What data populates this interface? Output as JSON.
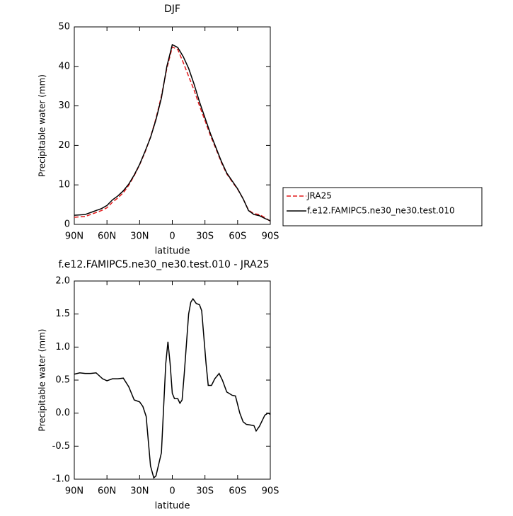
{
  "chart_data": [
    {
      "type": "line",
      "title": "DJF",
      "xlabel": "latitude",
      "ylabel": "Precipitable water (mm)",
      "x": [
        90,
        85,
        80,
        75,
        70,
        65,
        60,
        55,
        50,
        45,
        40,
        35,
        30,
        25,
        20,
        15,
        10,
        5,
        0,
        -5,
        -10,
        -15,
        -20,
        -25,
        -30,
        -35,
        -40,
        -45,
        -50,
        -55,
        -60,
        -65,
        -70,
        -75,
        -80,
        -85,
        -90
      ],
      "series": [
        {
          "name": "JRA25",
          "color": "#e41a1c",
          "linestyle": "dashed",
          "values": [
            1.8,
            1.9,
            2.0,
            2.5,
            3.0,
            3.5,
            4.2,
            5.6,
            6.7,
            8.0,
            9.9,
            12.3,
            15.1,
            18.3,
            22.1,
            26.8,
            32.5,
            39.5,
            44.9,
            44.3,
            41.0,
            37.5,
            34.0,
            30.0,
            26.3,
            22.5,
            19.2,
            15.7,
            12.8,
            10.8,
            8.9,
            6.5,
            3.6,
            2.7,
            2.5,
            1.7,
            0.8
          ]
        },
        {
          "name": "f.e12.FAMIPC5.ne30_ne30.test.010",
          "color": "#000000",
          "linestyle": "solid",
          "values": [
            2.3,
            2.4,
            2.5,
            3.0,
            3.5,
            4.0,
            4.8,
            6.2,
            7.2,
            8.5,
            10.2,
            12.5,
            15.2,
            18.5,
            22.0,
            26.5,
            32.0,
            40.0,
            45.5,
            44.8,
            42.5,
            39.5,
            35.5,
            31.0,
            27.0,
            23.0,
            19.5,
            16.0,
            13.0,
            11.0,
            9.0,
            6.5,
            3.5,
            2.5,
            2.2,
            1.5,
            0.9
          ]
        }
      ],
      "xlim": [
        90,
        -90
      ],
      "xticks": [
        {
          "value": 90,
          "label": "90N"
        },
        {
          "value": 60,
          "label": "60N"
        },
        {
          "value": 30,
          "label": "30N"
        },
        0,
        {
          "value": -30,
          "label": "30S"
        },
        {
          "value": -60,
          "label": "60S"
        },
        {
          "value": -90,
          "label": "90S"
        }
      ],
      "ylim": [
        0,
        50
      ],
      "yticks": [
        0,
        10,
        20,
        30,
        40,
        50
      ],
      "legend": "outside-right",
      "grid": false
    },
    {
      "type": "line",
      "title": "f.e12.FAMIPC5.ne30_ne30.test.010 - JRA25",
      "xlabel": "latitude",
      "ylabel": "Precipitable water (mm)",
      "x": [
        90,
        85,
        80,
        75,
        70,
        64,
        60,
        55,
        50,
        45,
        40,
        35,
        30,
        27,
        24,
        20,
        17,
        15,
        10,
        6,
        4,
        2,
        0,
        -2,
        -5,
        -7,
        -9,
        -11,
        -15,
        -17,
        -19,
        -22,
        -25,
        -27,
        -31,
        -33,
        -36,
        -39,
        -43,
        -46,
        -50,
        -55,
        -58,
        -62,
        -65,
        -68,
        -72,
        -75,
        -77,
        -80,
        -85,
        -88,
        -90
      ],
      "series": [
        {
          "color": "#000000",
          "linestyle": "solid",
          "values": [
            0.59,
            0.61,
            0.6,
            0.6,
            0.61,
            0.52,
            0.49,
            0.52,
            0.52,
            0.53,
            0.4,
            0.2,
            0.17,
            0.1,
            -0.05,
            -0.8,
            -0.98,
            -0.95,
            -0.6,
            0.75,
            1.08,
            0.75,
            0.3,
            0.22,
            0.22,
            0.15,
            0.2,
            0.6,
            1.5,
            1.68,
            1.73,
            1.66,
            1.64,
            1.55,
            0.75,
            0.42,
            0.42,
            0.52,
            0.6,
            0.5,
            0.32,
            0.27,
            0.26,
            0.0,
            -0.13,
            -0.17,
            -0.18,
            -0.19,
            -0.27,
            -0.2,
            -0.03,
            0.0,
            -0.02
          ]
        }
      ],
      "xlim": [
        90,
        -90
      ],
      "xticks": [
        {
          "value": 90,
          "label": "90N"
        },
        {
          "value": 60,
          "label": "60N"
        },
        {
          "value": 30,
          "label": "30N"
        },
        0,
        {
          "value": -30,
          "label": "30S"
        },
        {
          "value": -60,
          "label": "60S"
        },
        {
          "value": -90,
          "label": "90S"
        }
      ],
      "ylim": [
        -1,
        2
      ],
      "yticks": [
        {
          "value": -1,
          "label": "-1.0"
        },
        -0.5,
        {
          "value": 0,
          "label": "0.0"
        },
        0.5,
        {
          "value": 1,
          "label": "1.0"
        },
        1.5,
        {
          "value": 2,
          "label": "2.0"
        }
      ],
      "grid": false
    }
  ]
}
